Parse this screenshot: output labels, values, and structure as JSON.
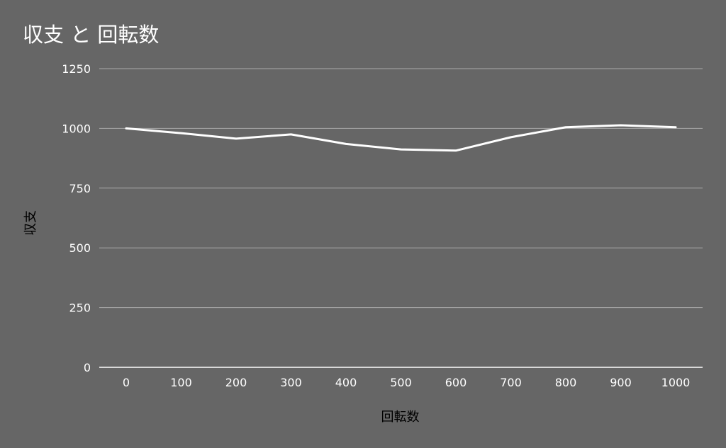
{
  "chart_data": {
    "type": "line",
    "title": "収支 と 回転数",
    "xlabel": "回転数",
    "ylabel": "収支",
    "x": [
      0,
      100,
      200,
      300,
      400,
      500,
      600,
      700,
      800,
      900,
      1000
    ],
    "series": [
      {
        "values": [
          1000,
          980,
          957,
          975,
          935,
          912,
          907,
          963,
          1005,
          1013,
          1005
        ]
      }
    ],
    "x_ticks": [
      "0",
      "100",
      "200",
      "300",
      "400",
      "500",
      "600",
      "700",
      "800",
      "900",
      "1000"
    ],
    "y_ticks": [
      "0",
      "250",
      "500",
      "750",
      "1000",
      "1250"
    ],
    "ylim": [
      0,
      1250
    ],
    "grid": true,
    "legend": "none",
    "colors": {
      "background": "#666666",
      "line": "#ffffff",
      "grid": "#aaaaaa",
      "axis": "#ffffff"
    }
  }
}
